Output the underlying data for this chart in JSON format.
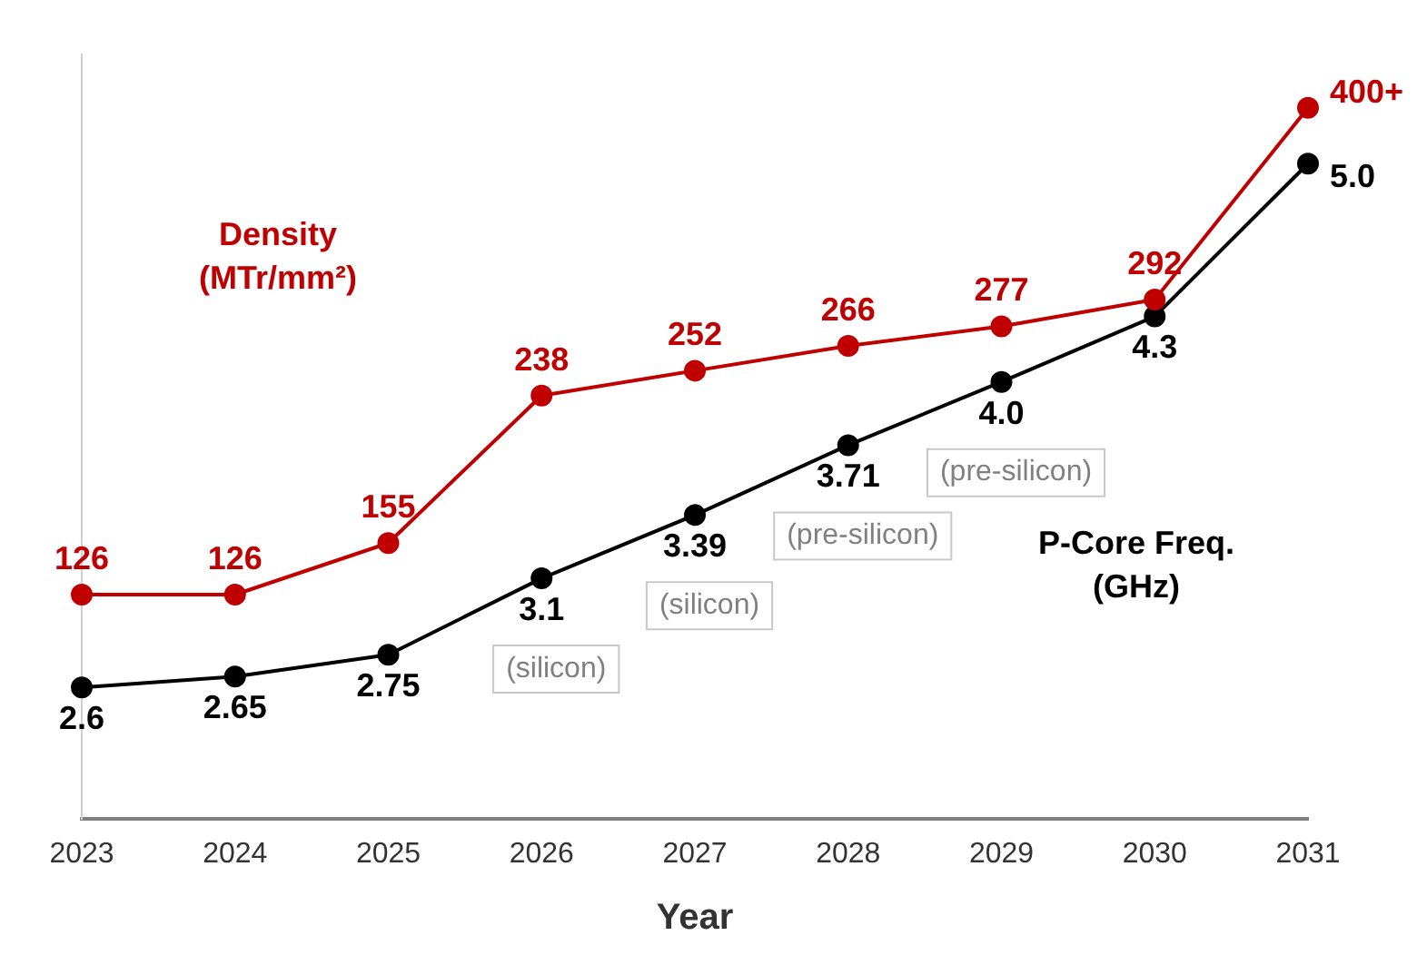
{
  "chart_data": {
    "type": "line",
    "xlabel": "Year",
    "categories": [
      "2023",
      "2024",
      "2025",
      "2026",
      "2027",
      "2028",
      "2029",
      "2030",
      "2031"
    ],
    "series": [
      {
        "name": "Density (MTr/mm²)",
        "color": "#c00000",
        "axis": "y",
        "values": [
          126,
          126,
          155,
          238,
          252,
          266,
          277,
          292,
          400
        ],
        "value_labels": [
          "126",
          "126",
          "155",
          "238",
          "252",
          "266",
          "277",
          "292",
          "400+"
        ]
      },
      {
        "name": "P-Core Freq. (GHz)",
        "color": "#000000",
        "axis": "y2",
        "values": [
          2.6,
          2.65,
          2.75,
          3.1,
          3.39,
          3.71,
          4.0,
          4.3,
          5.0
        ],
        "value_labels": [
          "2.6",
          "2.65",
          "2.75",
          "3.1",
          "3.39",
          "3.71",
          "4.0",
          "4.3",
          "5.0"
        ]
      }
    ],
    "ylim": [
      0,
      430
    ],
    "annotations": [
      "(silicon)",
      "(silicon)",
      "(pre-silicon)",
      "(pre-silicon)"
    ],
    "tick_labels": "x",
    "grid": false,
    "legend": false,
    "marker": "circle",
    "line_style": "solid"
  }
}
